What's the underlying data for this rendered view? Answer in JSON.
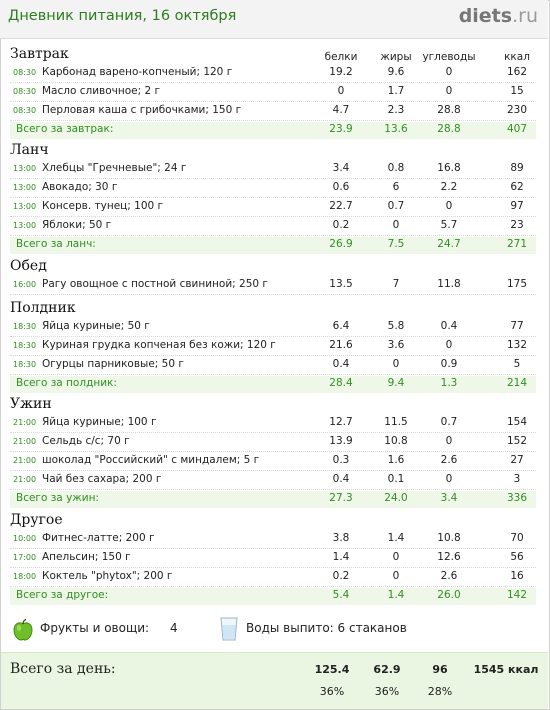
{
  "header": {
    "title": "Дневник питания, 16 октября",
    "logo_main": "diets",
    "logo_tld": ".ru"
  },
  "columns": {
    "protein": "белки",
    "fat": "жиры",
    "carbs": "углеводы",
    "kcal": "ккал"
  },
  "sections": [
    {
      "name": "Завтрак",
      "items": [
        {
          "time": "08:30",
          "name": "Карбонад варено-копченый; 120 г",
          "p": "19.2",
          "f": "9.6",
          "c": "0",
          "k": "162"
        },
        {
          "time": "08:30",
          "name": "Масло сливочное; 2 г",
          "p": "0",
          "f": "1.7",
          "c": "0",
          "k": "15"
        },
        {
          "time": "08:30",
          "name": "Перловая каша с грибочками; 150 г",
          "p": "4.7",
          "f": "2.3",
          "c": "28.8",
          "k": "230"
        }
      ],
      "total": {
        "label": "Всего за завтрак:",
        "p": "23.9",
        "f": "13.6",
        "c": "28.8",
        "k": "407"
      }
    },
    {
      "name": "Ланч",
      "items": [
        {
          "time": "13:00",
          "name": "Хлебцы \"Гречневые\"; 24 г",
          "p": "3.4",
          "f": "0.8",
          "c": "16.8",
          "k": "89"
        },
        {
          "time": "13:00",
          "name": "Авокадо; 30 г",
          "p": "0.6",
          "f": "6",
          "c": "2.2",
          "k": "62"
        },
        {
          "time": "13:00",
          "name": "Консерв. тунец; 100 г",
          "p": "22.7",
          "f": "0.7",
          "c": "0",
          "k": "97"
        },
        {
          "time": "13:00",
          "name": "Яблоки; 50 г",
          "p": "0.2",
          "f": "0",
          "c": "5.7",
          "k": "23"
        }
      ],
      "total": {
        "label": "Всего за ланч:",
        "p": "26.9",
        "f": "7.5",
        "c": "24.7",
        "k": "271"
      }
    },
    {
      "name": "Обед",
      "items": [
        {
          "time": "16:00",
          "name": "Рагу овощное с постной свининой; 250 г",
          "p": "13.5",
          "f": "7",
          "c": "11.8",
          "k": "175"
        }
      ],
      "total": null
    },
    {
      "name": "Полдник",
      "items": [
        {
          "time": "18:30",
          "name": "Яйца куриные; 50 г",
          "p": "6.4",
          "f": "5.8",
          "c": "0.4",
          "k": "77"
        },
        {
          "time": "18:30",
          "name": "Куриная грудка копченая без кожи; 120 г",
          "p": "21.6",
          "f": "3.6",
          "c": "0",
          "k": "132"
        },
        {
          "time": "18:30",
          "name": "Огурцы парниковые; 50 г",
          "p": "0.4",
          "f": "0",
          "c": "0.9",
          "k": "5"
        }
      ],
      "total": {
        "label": "Всего за полдник:",
        "p": "28.4",
        "f": "9.4",
        "c": "1.3",
        "k": "214"
      }
    },
    {
      "name": "Ужин",
      "items": [
        {
          "time": "21:00",
          "name": "Яйца куриные; 100 г",
          "p": "12.7",
          "f": "11.5",
          "c": "0.7",
          "k": "154"
        },
        {
          "time": "21:00",
          "name": "Сельдь с/с; 70 г",
          "p": "13.9",
          "f": "10.8",
          "c": "0",
          "k": "152"
        },
        {
          "time": "21:00",
          "name": "шоколад \"Российский\" с миндалем; 5 г",
          "p": "0.3",
          "f": "1.6",
          "c": "2.6",
          "k": "27"
        },
        {
          "time": "21:00",
          "name": "Чай без сахара; 200 г",
          "p": "0.4",
          "f": "0.1",
          "c": "0",
          "k": "3"
        }
      ],
      "total": {
        "label": "Всего за ужин:",
        "p": "27.3",
        "f": "24.0",
        "c": "3.4",
        "k": "336"
      }
    },
    {
      "name": "Другое",
      "items": [
        {
          "time": "10:00",
          "name": "Фитнес-латте; 200 г",
          "p": "3.8",
          "f": "1.4",
          "c": "10.8",
          "k": "70"
        },
        {
          "time": "17:00",
          "name": "Апельсин; 150 г",
          "p": "1.4",
          "f": "0",
          "c": "12.6",
          "k": "56"
        },
        {
          "time": "18:00",
          "name": "Коктель \"phytox\"; 200 г",
          "p": "0.2",
          "f": "0",
          "c": "2.6",
          "k": "16"
        }
      ],
      "total": {
        "label": "Всего за другое:",
        "p": "5.4",
        "f": "1.4",
        "c": "26.0",
        "k": "142"
      }
    }
  ],
  "extras": {
    "fruit_label": "Фрукты и овощи:",
    "fruit_count": "4",
    "water_label": "Воды выпито: 6 стаканов"
  },
  "day_total": {
    "label": "Всего за день:",
    "p": "125.4",
    "f": "62.9",
    "c": "96",
    "k": "1545 ккал",
    "p_pct": "36%",
    "f_pct": "36%",
    "c_pct": "28%"
  }
}
